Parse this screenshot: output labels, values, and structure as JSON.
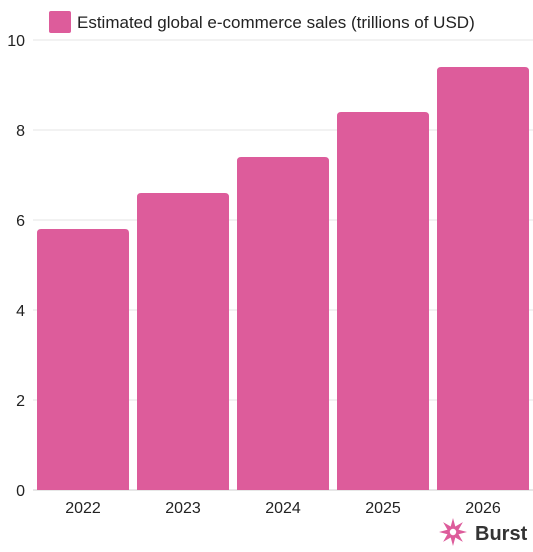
{
  "chart_data": {
    "type": "bar",
    "categories": [
      "2022",
      "2023",
      "2024",
      "2025",
      "2026"
    ],
    "series": [
      {
        "name": "Estimated global e-commerce sales (trillions of USD)",
        "values": [
          5.8,
          6.6,
          7.4,
          8.4,
          9.4
        ]
      }
    ],
    "yticks": [
      0,
      2,
      4,
      6,
      8,
      10
    ],
    "ylim": [
      0,
      10
    ],
    "grid": true,
    "legend_position": "top",
    "title": "",
    "xlabel": "",
    "ylabel": ""
  },
  "colors": {
    "bar": "#dd5c9b",
    "grid": "#e6e6e6",
    "text": "#222222"
  },
  "branding": {
    "logo_text": "Burst",
    "logo_icon": "burst-star-icon"
  }
}
